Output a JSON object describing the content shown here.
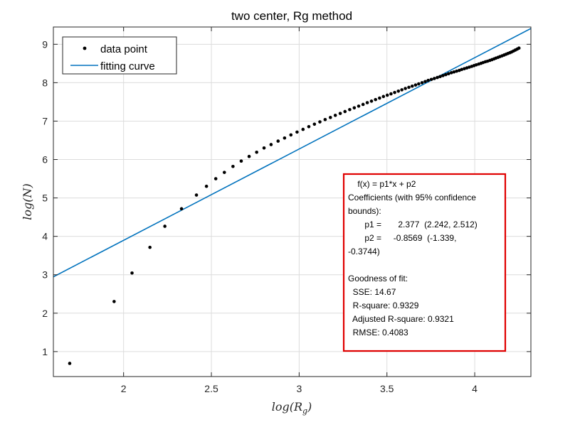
{
  "chart_data": {
    "type": "scatter",
    "title": "two center, Rg method",
    "xlabel": "log(R",
    "xlabel_sub": "g",
    "xlabel_close": ")",
    "ylabel": "log(N)",
    "xlim": [
      1.6,
      4.32
    ],
    "ylim": [
      0.35,
      9.45
    ],
    "xticks": [
      2,
      2.5,
      3,
      3.5,
      4
    ],
    "yticks": [
      1,
      2,
      3,
      4,
      5,
      6,
      7,
      8,
      9
    ],
    "xtick_labels": [
      "2",
      "2.5",
      "3",
      "3.5",
      "4"
    ],
    "ytick_labels": [
      "1",
      "2",
      "3",
      "4",
      "5",
      "6",
      "7",
      "8",
      "9"
    ],
    "grid": true,
    "legend_position": "top-left",
    "series": [
      {
        "name": "data point",
        "marker": "dot",
        "color": "#000000",
        "x": [
          1.693,
          1.946,
          2.048,
          2.15,
          2.235,
          2.33,
          2.415,
          2.472,
          2.525,
          2.574,
          2.623,
          2.67,
          2.715,
          2.758,
          2.8,
          2.84,
          2.88,
          2.917,
          2.953,
          2.988,
          3.022,
          3.055,
          3.087,
          3.118,
          3.148,
          3.178,
          3.206,
          3.234,
          3.261,
          3.288,
          3.314,
          3.339,
          3.364,
          3.388,
          3.412,
          3.435,
          3.458,
          3.48,
          3.502,
          3.523,
          3.544,
          3.565,
          3.585,
          3.605,
          3.625,
          3.644,
          3.663,
          3.681,
          3.7,
          3.718,
          3.735,
          3.753,
          3.77,
          3.787,
          3.803,
          3.819,
          3.835,
          3.851,
          3.867,
          3.882,
          3.897,
          3.912,
          3.926,
          3.941,
          3.955,
          3.969,
          3.983,
          3.996,
          4.009,
          4.023,
          4.036,
          4.048,
          4.061,
          4.073,
          4.086,
          4.098,
          4.11,
          4.121,
          4.133,
          4.144,
          4.156,
          4.167,
          4.178,
          4.189,
          4.2,
          4.21,
          4.221,
          4.231,
          4.242,
          4.252
        ],
        "y": [
          0.693,
          2.303,
          3.045,
          3.714,
          4.263,
          4.718,
          5.075,
          5.303,
          5.5,
          5.665,
          5.82,
          5.96,
          6.08,
          6.19,
          6.3,
          6.39,
          6.48,
          6.56,
          6.64,
          6.715,
          6.785,
          6.855,
          6.92,
          6.98,
          7.04,
          7.095,
          7.15,
          7.2,
          7.25,
          7.3,
          7.345,
          7.39,
          7.435,
          7.48,
          7.52,
          7.56,
          7.6,
          7.64,
          7.675,
          7.71,
          7.745,
          7.78,
          7.815,
          7.85,
          7.88,
          7.91,
          7.94,
          7.97,
          8.0,
          8.03,
          8.06,
          8.085,
          8.11,
          8.135,
          8.16,
          8.185,
          8.21,
          8.235,
          8.26,
          8.28,
          8.3,
          8.32,
          8.345,
          8.365,
          8.385,
          8.405,
          8.425,
          8.445,
          8.465,
          8.485,
          8.505,
          8.525,
          8.545,
          8.56,
          8.58,
          8.6,
          8.62,
          8.64,
          8.66,
          8.68,
          8.7,
          8.72,
          8.74,
          8.76,
          8.78,
          8.8,
          8.825,
          8.85,
          8.875,
          8.9
        ]
      },
      {
        "name": "fitting curve",
        "type": "line",
        "color": "#0072BD",
        "slope": 2.377,
        "intercept": -0.8569,
        "x": [
          1.6,
          4.32
        ]
      }
    ],
    "annotation": {
      "border_color": "#E00000",
      "lines": [
        "    f(x) = p1*x + p2",
        "Coefficients (with 95% confidence",
        "bounds):",
        "       p1 =       2.377  (2.242, 2.512)",
        "       p2 =     -0.8569  (-1.339,",
        "-0.3744)",
        "",
        "Goodness of fit:",
        "  SSE: 14.67",
        "  R-square: 0.9329",
        "  Adjusted R-square: 0.9321",
        "  RMSE: 0.4083"
      ]
    }
  }
}
